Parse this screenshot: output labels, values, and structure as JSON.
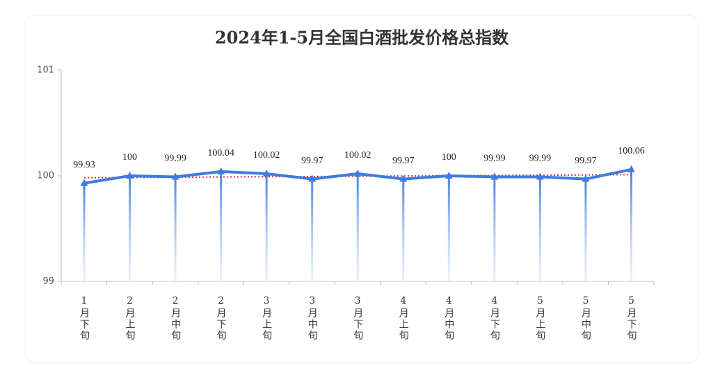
{
  "chart_data": {
    "type": "line",
    "title": "2024年1-5月全国白酒批发价格总指数",
    "categories": [
      "1月下旬",
      "2月上旬",
      "2月中旬",
      "2月下旬",
      "3月上旬",
      "3月中旬",
      "3月下旬",
      "4月上旬",
      "4月中旬",
      "4月下旬",
      "5月上旬",
      "5月中旬",
      "5月下旬"
    ],
    "values": [
      99.93,
      100,
      99.99,
      100.04,
      100.02,
      99.97,
      100.02,
      99.97,
      100,
      99.99,
      99.99,
      99.97,
      100.06
    ],
    "color": "#3f7be0",
    "ylim": [
      99,
      101
    ],
    "yticks": [
      99,
      100,
      101
    ],
    "trendline": true
  }
}
